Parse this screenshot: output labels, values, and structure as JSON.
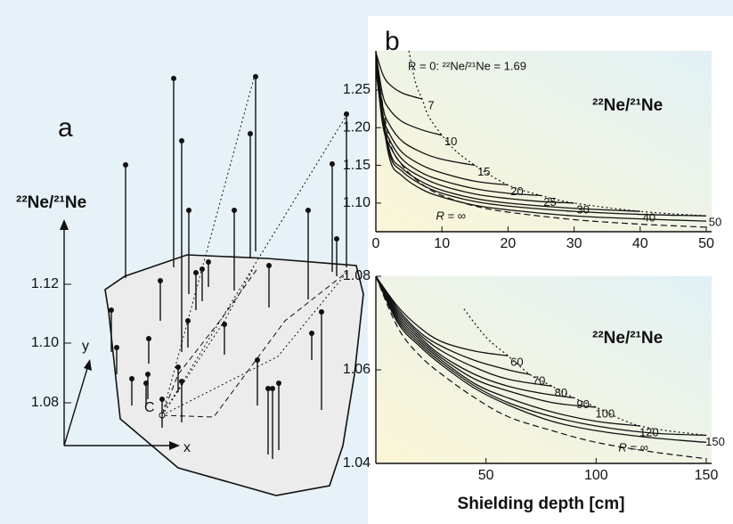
{
  "panel_a": {
    "label": "a",
    "y_axis_label": "²²Ne/²¹Ne",
    "yticks": [
      "1.08",
      "1.10",
      "1.12"
    ],
    "x_label": "x",
    "y_label": "y",
    "point_label": "C"
  },
  "panel_b": {
    "label": "b"
  },
  "chart_data": [
    {
      "type": "line",
      "annotation": "R = 0: ²²Ne/²¹Ne = 1.69",
      "inner_label": "²²Ne/²¹Ne",
      "xlim": [
        0,
        50
      ],
      "ylim": [
        1.062,
        1.302
      ],
      "xticks": [
        0,
        10,
        20,
        30,
        40,
        50
      ],
      "yticks": [
        {
          "value": 1.1,
          "label": "1.10"
        },
        1.15,
        {
          "value": 1.2,
          "label": "1.20"
        },
        1.25
      ],
      "series": [
        {
          "name": "7",
          "linestyle": "solid",
          "x": [
            0,
            1,
            2,
            4,
            7
          ],
          "values": [
            1.3,
            1.272,
            1.258,
            1.246,
            1.238
          ]
        },
        {
          "name": "10",
          "linestyle": "solid",
          "x": [
            0,
            1,
            2,
            4,
            7,
            10
          ],
          "values": [
            1.3,
            1.245,
            1.225,
            1.208,
            1.197,
            1.19
          ]
        },
        {
          "name": "15",
          "linestyle": "solid",
          "x": [
            0,
            1,
            2,
            4,
            7,
            10,
            15
          ],
          "values": [
            1.3,
            1.23,
            1.205,
            1.182,
            1.167,
            1.158,
            1.15
          ]
        },
        {
          "name": "20",
          "linestyle": "solid",
          "x": [
            0,
            1,
            2,
            4,
            7,
            10,
            15,
            20
          ],
          "values": [
            1.295,
            1.22,
            1.193,
            1.167,
            1.15,
            1.14,
            1.129,
            1.124
          ]
        },
        {
          "name": "25",
          "linestyle": "solid",
          "x": [
            0,
            1,
            2,
            4,
            7,
            10,
            15,
            20,
            25
          ],
          "values": [
            1.29,
            1.212,
            1.185,
            1.158,
            1.14,
            1.13,
            1.119,
            1.113,
            1.11
          ]
        },
        {
          "name": "30",
          "linestyle": "solid",
          "x": [
            0,
            1,
            2,
            4,
            7,
            10,
            15,
            20,
            25,
            30
          ],
          "values": [
            1.285,
            1.206,
            1.178,
            1.151,
            1.134,
            1.123,
            1.112,
            1.106,
            1.102,
            1.1
          ]
        },
        {
          "name": "40",
          "linestyle": "solid",
          "x": [
            0,
            2,
            4,
            7,
            10,
            15,
            20,
            30,
            40
          ],
          "values": [
            1.28,
            1.172,
            1.146,
            1.128,
            1.117,
            1.106,
            1.1,
            1.093,
            1.089
          ]
        },
        {
          "name": "50",
          "linestyle": "solid",
          "x": [
            0,
            2,
            4,
            7,
            10,
            15,
            20,
            30,
            40,
            50
          ],
          "values": [
            1.278,
            1.168,
            1.142,
            1.124,
            1.113,
            1.102,
            1.096,
            1.089,
            1.085,
            1.083
          ]
        },
        {
          "name": "R = ∞",
          "linestyle": "solid",
          "x": [
            0,
            2,
            4,
            7,
            10,
            15,
            20,
            30,
            40,
            50
          ],
          "values": [
            1.275,
            1.162,
            1.136,
            1.118,
            1.108,
            1.097,
            1.091,
            1.083,
            1.079,
            1.076
          ]
        },
        {
          "linestyle": "dashed",
          "x": [
            0,
            2,
            4,
            7,
            10,
            15,
            20,
            30,
            40,
            50
          ],
          "values": [
            1.29,
            1.185,
            1.15,
            1.125,
            1.11,
            1.096,
            1.088,
            1.078,
            1.072,
            1.068
          ]
        },
        {
          "linestyle": "dotted",
          "x": [
            5,
            6,
            7,
            8,
            10,
            12,
            15,
            20,
            25,
            30,
            40,
            50
          ],
          "values": [
            1.302,
            1.26,
            1.238,
            1.215,
            1.19,
            1.17,
            1.15,
            1.124,
            1.11,
            1.1,
            1.089,
            1.083
          ]
        }
      ]
    },
    {
      "type": "line",
      "inner_label": "²²Ne/²¹Ne",
      "x_label": "Shielding depth [cm]",
      "xlim": [
        0,
        150
      ],
      "ylim": [
        1.04,
        1.08
      ],
      "xticks": [
        50,
        100,
        150
      ],
      "yticks": [
        1.04,
        1.06,
        1.08
      ],
      "series": [
        {
          "name": "60",
          "linestyle": "solid",
          "x": [
            0,
            10,
            20,
            30,
            45,
            60
          ],
          "values": [
            1.08,
            1.0735,
            1.069,
            1.066,
            1.064,
            1.063
          ]
        },
        {
          "name": "70",
          "linestyle": "solid",
          "x": [
            0,
            10,
            20,
            30,
            45,
            60,
            70
          ],
          "values": [
            1.08,
            1.073,
            1.068,
            1.065,
            1.062,
            1.06,
            1.059
          ]
        },
        {
          "name": "80",
          "linestyle": "solid",
          "x": [
            0,
            10,
            20,
            30,
            45,
            60,
            80
          ],
          "values": [
            1.08,
            1.0725,
            1.0675,
            1.064,
            1.0605,
            1.058,
            1.0565
          ]
        },
        {
          "name": "90",
          "linestyle": "solid",
          "x": [
            0,
            10,
            20,
            30,
            45,
            60,
            75,
            90
          ],
          "values": [
            1.08,
            1.072,
            1.067,
            1.063,
            1.059,
            1.0565,
            1.055,
            1.054
          ]
        },
        {
          "name": "100",
          "linestyle": "solid",
          "x": [
            0,
            10,
            20,
            30,
            45,
            60,
            80,
            100
          ],
          "values": [
            1.08,
            1.0715,
            1.0665,
            1.0625,
            1.058,
            1.0555,
            1.053,
            1.052
          ]
        },
        {
          "name": "120",
          "linestyle": "solid",
          "x": [
            0,
            10,
            20,
            30,
            45,
            60,
            80,
            100,
            120
          ],
          "values": [
            1.08,
            1.071,
            1.066,
            1.062,
            1.057,
            1.054,
            1.051,
            1.049,
            1.048
          ]
        },
        {
          "name": "150",
          "linestyle": "solid",
          "x": [
            0,
            10,
            20,
            30,
            45,
            60,
            80,
            100,
            125,
            150
          ],
          "values": [
            1.08,
            1.0705,
            1.0655,
            1.0615,
            1.0565,
            1.053,
            1.05,
            1.048,
            1.0465,
            1.046
          ]
        },
        {
          "name": "R = ∞",
          "linestyle": "solid",
          "x": [
            0,
            10,
            20,
            30,
            45,
            60,
            80,
            100,
            125,
            150
          ],
          "values": [
            1.08,
            1.07,
            1.065,
            1.061,
            1.056,
            1.0525,
            1.049,
            1.047,
            1.0455,
            1.0445
          ]
        },
        {
          "linestyle": "dashed",
          "x": [
            0,
            10,
            20,
            30,
            45,
            60,
            80,
            100,
            125,
            150
          ],
          "values": [
            1.08,
            1.069,
            1.063,
            1.059,
            1.054,
            1.05,
            1.047,
            1.0445,
            1.0425,
            1.041
          ]
        },
        {
          "linestyle": "dotted",
          "x": [
            40,
            50,
            60,
            70,
            80,
            90,
            100,
            120,
            150
          ],
          "values": [
            1.073,
            1.067,
            1.063,
            1.059,
            1.0565,
            1.054,
            1.052,
            1.048,
            1.046
          ]
        }
      ]
    }
  ]
}
